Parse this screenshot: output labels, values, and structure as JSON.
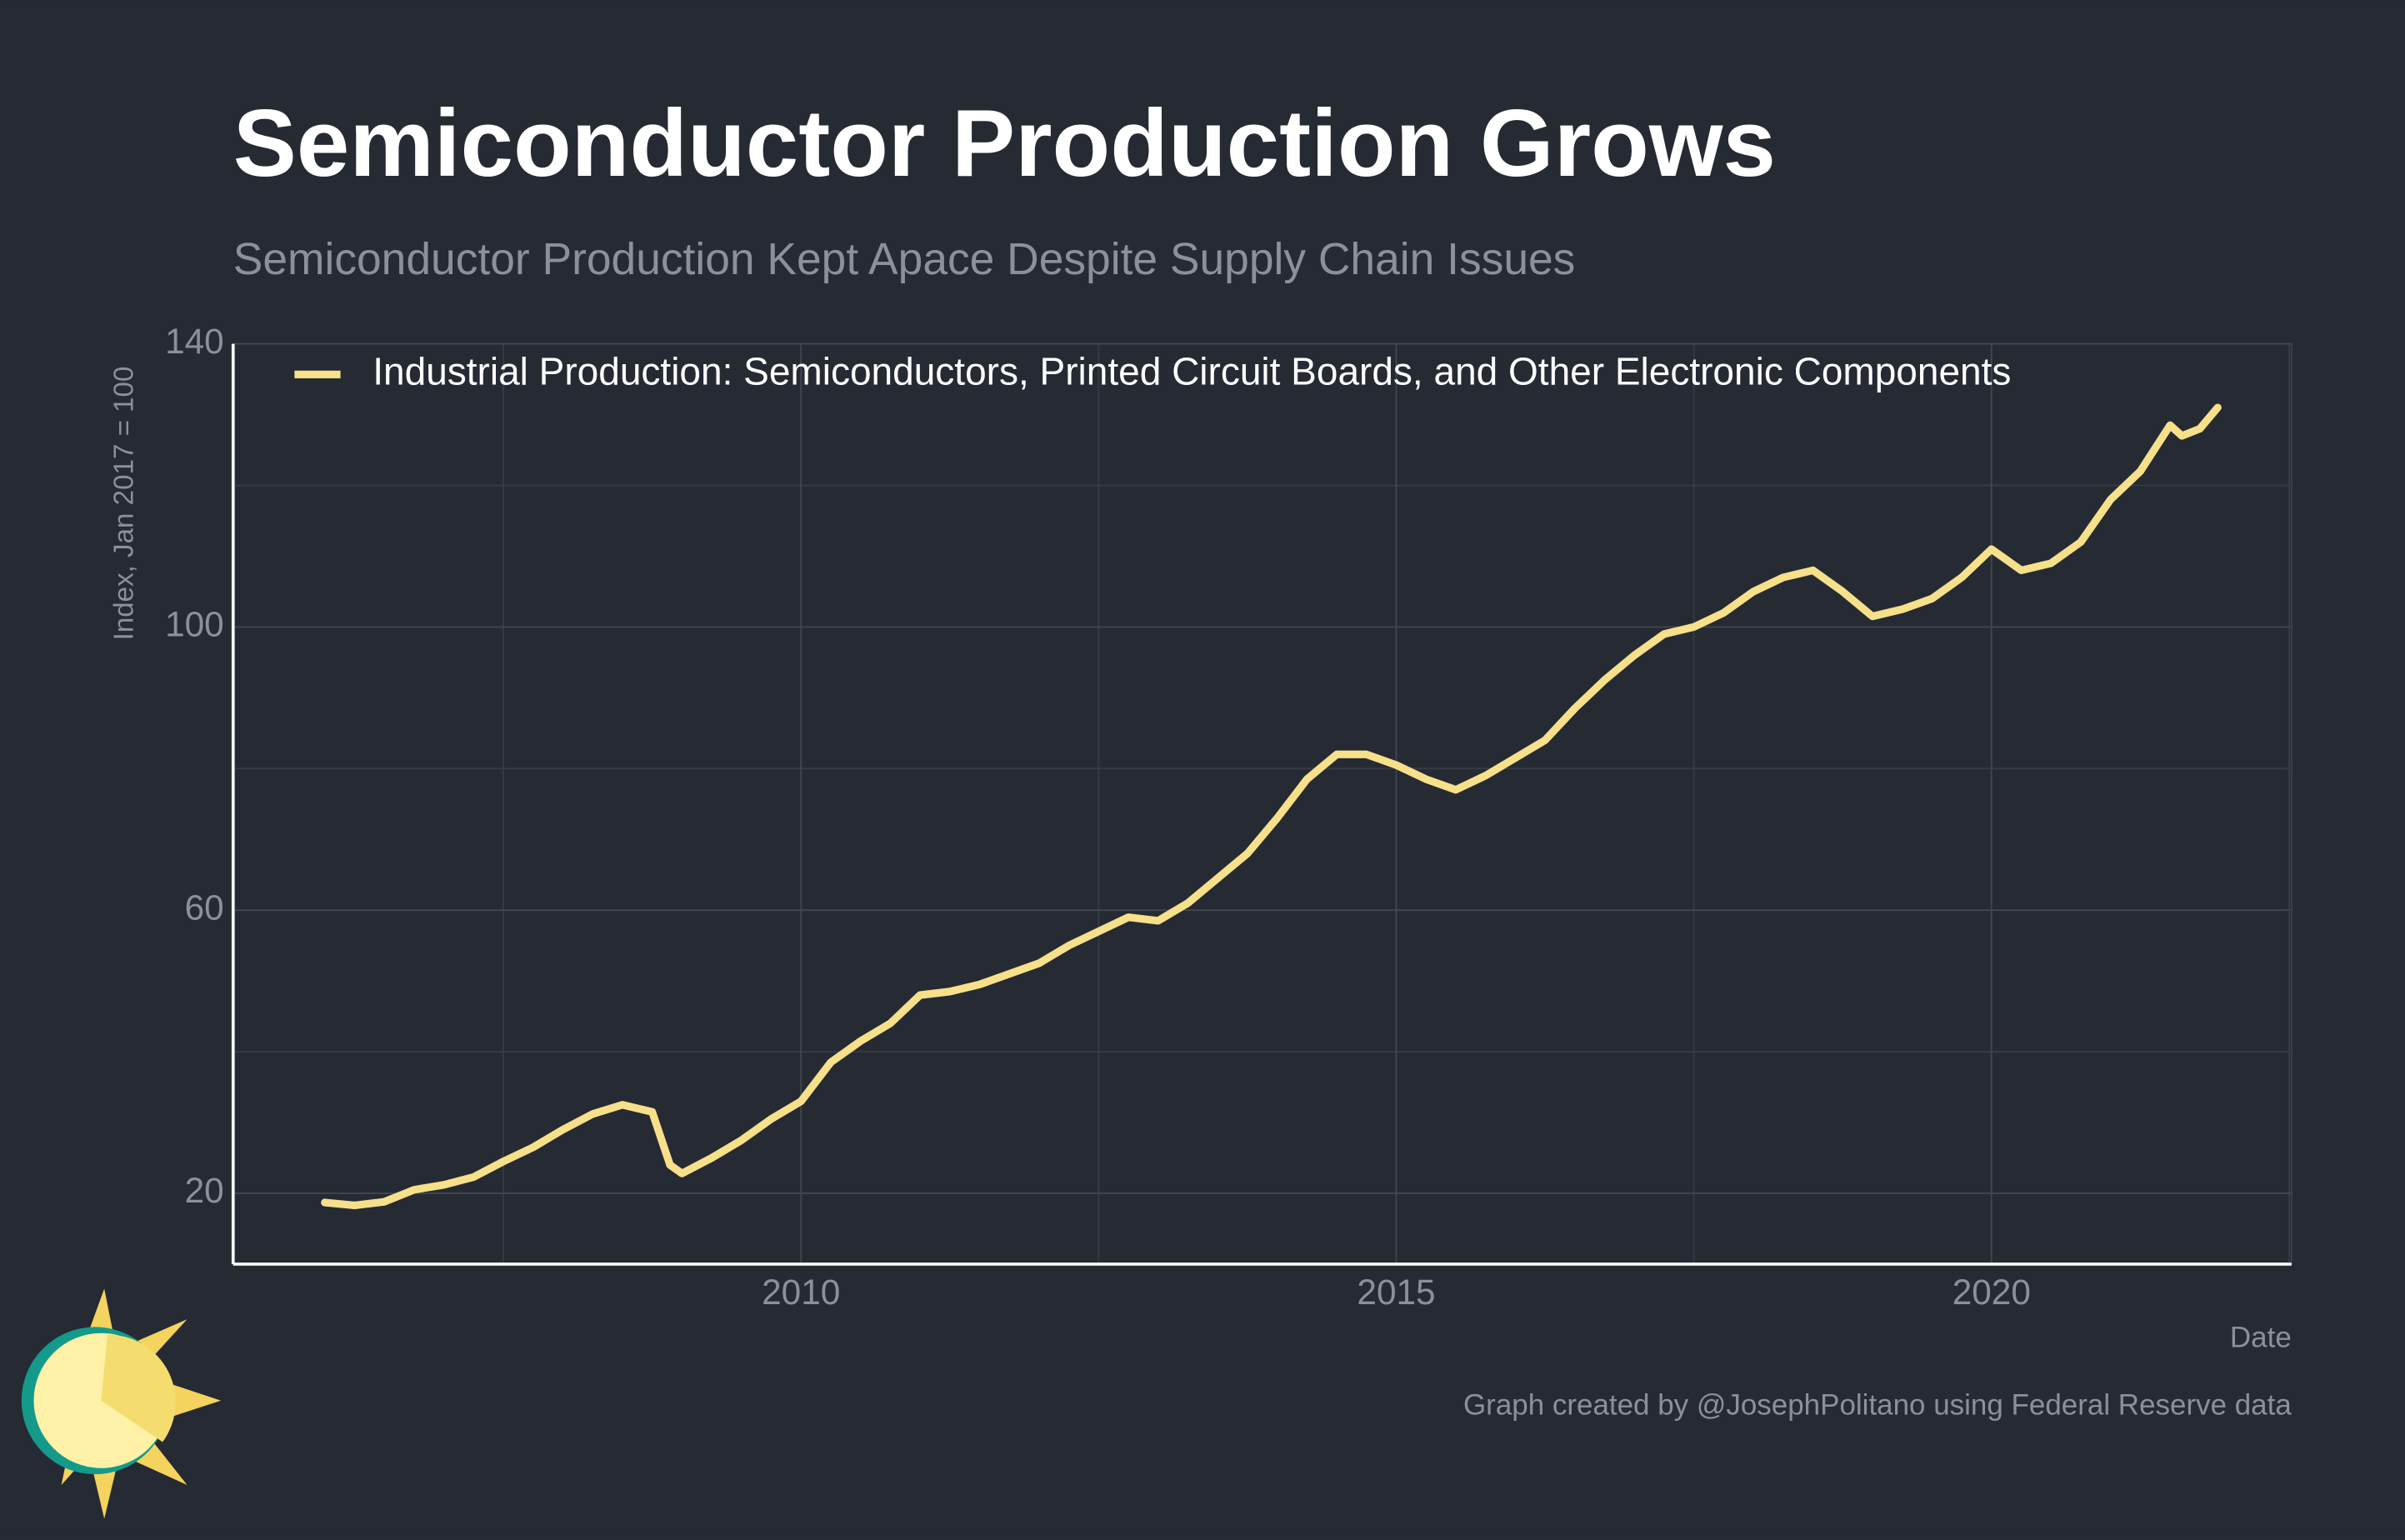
{
  "chart_data": {
    "type": "line",
    "title": "Semiconductor Production Grows",
    "subtitle": "Semiconductor Production Kept Apace Despite Supply Chain Issues",
    "y_label": "Index, Jan 2017 = 100",
    "x_label": "Date",
    "caption": "Graph created by @JosephPolitano using Federal Reserve data",
    "x": [
      2006.0,
      2006.25,
      2006.5,
      2006.75,
      2007.0,
      2007.25,
      2007.5,
      2007.75,
      2008.0,
      2008.25,
      2008.5,
      2008.75,
      2008.9,
      2009.0,
      2009.25,
      2009.5,
      2009.75,
      2010.0,
      2010.25,
      2010.5,
      2010.75,
      2011.0,
      2011.25,
      2011.5,
      2011.75,
      2012.0,
      2012.25,
      2012.5,
      2012.75,
      2013.0,
      2013.25,
      2013.5,
      2013.75,
      2014.0,
      2014.25,
      2014.5,
      2014.75,
      2015.0,
      2015.25,
      2015.5,
      2015.75,
      2016.0,
      2016.25,
      2016.5,
      2016.75,
      2017.0,
      2017.25,
      2017.5,
      2017.75,
      2018.0,
      2018.25,
      2018.5,
      2018.75,
      2019.0,
      2019.25,
      2019.5,
      2019.75,
      2020.0,
      2020.25,
      2020.5,
      2020.75,
      2021.0,
      2021.25,
      2021.5,
      2021.6,
      2021.75,
      2021.9
    ],
    "series": [
      {
        "name": "Industrial Production: Semiconductors, Printed Circuit Boards, and Other Electronic Components",
        "color": "#f7e08a",
        "values": [
          18.7,
          18.3,
          18.8,
          20.5,
          21.2,
          22.3,
          24.5,
          26.5,
          29.0,
          31.2,
          32.5,
          31.5,
          24,
          22.8,
          25,
          27.5,
          30.5,
          33,
          38.5,
          41.5,
          44,
          48,
          48.5,
          49.5,
          51,
          52.5,
          55,
          57,
          59,
          58.5,
          61,
          64.5,
          68,
          73,
          78.5,
          82,
          82,
          80.5,
          78.5,
          77,
          79,
          81.5,
          84,
          88.5,
          92.5,
          96,
          99,
          100,
          102,
          105,
          107,
          108,
          105,
          101.5,
          102.5,
          104,
          107,
          111,
          108,
          109,
          112,
          118,
          122,
          128.5,
          127,
          128,
          131
        ]
      }
    ],
    "xlim": [
      2005.23,
      2022.52
    ],
    "xticks": [
      2010,
      2015,
      2020
    ],
    "ylim": [
      10,
      140
    ],
    "yticks": [
      20,
      60,
      100,
      140
    ],
    "grid": true,
    "legend": "top-left"
  }
}
